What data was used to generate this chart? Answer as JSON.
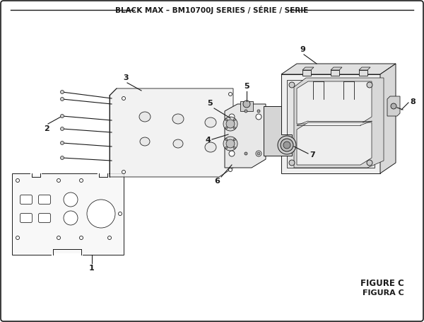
{
  "title": "BLACK MAX – BM10700J SERIES / SÉRIE / SERIE",
  "figure_label": "FIGURE C",
  "figure_label2": "FIGURA C",
  "bg_color": "#ffffff",
  "border_color": "#1a1a1a",
  "line_color": "#1a1a1a",
  "title_fontsize": 7.5,
  "fig_label_fontsize": 8.5,
  "border_lw": 1.2,
  "part_lw": 0.7
}
